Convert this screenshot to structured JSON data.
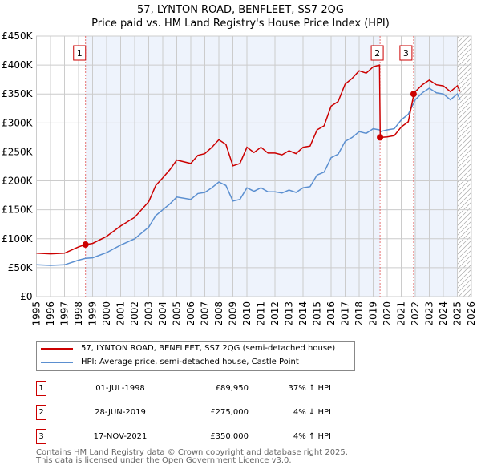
{
  "chart_data": {
    "type": "line",
    "title": "57, LYNTON ROAD, BENFLEET, SS7 2QG",
    "subtitle": "Price paid vs. HM Land Registry's House Price Index (HPI)",
    "xlim": [
      1995,
      2026
    ],
    "ylim": [
      0,
      450000
    ],
    "yticks": [
      {
        "v": 0,
        "l": "£0"
      },
      {
        "v": 50000,
        "l": "£50K"
      },
      {
        "v": 100000,
        "l": "£100K"
      },
      {
        "v": 150000,
        "l": "£150K"
      },
      {
        "v": 200000,
        "l": "£200K"
      },
      {
        "v": 250000,
        "l": "£250K"
      },
      {
        "v": 300000,
        "l": "£300K"
      },
      {
        "v": 350000,
        "l": "£350K"
      },
      {
        "v": 400000,
        "l": "£400K"
      },
      {
        "v": 450000,
        "l": "£450K"
      }
    ],
    "xticks": [
      "1995",
      "1996",
      "1997",
      "1998",
      "1999",
      "2000",
      "2001",
      "2002",
      "2003",
      "2004",
      "2005",
      "2006",
      "2007",
      "2008",
      "2009",
      "2010",
      "2011",
      "2012",
      "2013",
      "2014",
      "2015",
      "2016",
      "2017",
      "2018",
      "2019",
      "2020",
      "2021",
      "2022",
      "2023",
      "2024",
      "2025",
      "2026"
    ],
    "x": [
      1995,
      1996,
      1997,
      1998,
      1998.5,
      1999,
      2000,
      2001,
      2002,
      2003,
      2003.5,
      2004,
      2004.5,
      2005,
      2006,
      2006.5,
      2007,
      2007.5,
      2008,
      2008.5,
      2009,
      2009.5,
      2010,
      2010.5,
      2011,
      2011.5,
      2012,
      2012.5,
      2013,
      2013.5,
      2014,
      2014.5,
      2015,
      2015.5,
      2016,
      2016.5,
      2017,
      2017.5,
      2018,
      2018.5,
      2019,
      2019.45,
      2019.5,
      2020,
      2020.5,
      2021,
      2021.5,
      2021.9,
      2022,
      2022.5,
      2023,
      2023.5,
      2024,
      2024.5,
      2025,
      2025.2
    ],
    "series": [
      {
        "name": "57, LYNTON ROAD, BENFLEET, SS7 2QG (semi-detached house)",
        "color": "#cc0000",
        "values": [
          75,
          74,
          75,
          86,
          90,
          92,
          104,
          122,
          137,
          164,
          192,
          205,
          219,
          236,
          230,
          244,
          247,
          258,
          271,
          263,
          226,
          230,
          258,
          249,
          258,
          248,
          248,
          245,
          252,
          247,
          258,
          260,
          288,
          295,
          329,
          337,
          367,
          377,
          390,
          386,
          397,
          400,
          275,
          276,
          278,
          293,
          302,
          350,
          354,
          366,
          374,
          366,
          364,
          354,
          364,
          354
        ]
      },
      {
        "name": "HPI: Average price, semi-detached house, Castle Point",
        "color": "#5b8fd0",
        "values": [
          55,
          54,
          55,
          63,
          66,
          67,
          76,
          89,
          100,
          120,
          140,
          150,
          160,
          172,
          168,
          178,
          180,
          188,
          198,
          192,
          165,
          168,
          188,
          182,
          188,
          181,
          181,
          179,
          184,
          180,
          188,
          190,
          210,
          215,
          240,
          246,
          268,
          275,
          285,
          282,
          290,
          288,
          285,
          288,
          290,
          305,
          315,
          335,
          340,
          352,
          360,
          352,
          350,
          340,
          350,
          340
        ]
      }
    ],
    "value_unit": "thousands GBP",
    "sales": [
      {
        "n": "1",
        "x": 1998.5,
        "date": "01-JUL-1998",
        "price": "£89,950",
        "value": 89950,
        "hpi": "37% ↑ HPI"
      },
      {
        "n": "2",
        "x": 2019.49,
        "date": "28-JUN-2019",
        "price": "£275,000",
        "value": 275000,
        "hpi": "4% ↓ HPI"
      },
      {
        "n": "3",
        "x": 2021.88,
        "date": "17-NOV-2021",
        "price": "£350,000",
        "value": 350000,
        "hpi": "4% ↑ HPI"
      }
    ],
    "legend_position": "below"
  },
  "footer": {
    "line1": "Contains HM Land Registry data © Crown copyright and database right 2025.",
    "line2": "This data is licensed under the Open Government Licence v3.0."
  }
}
